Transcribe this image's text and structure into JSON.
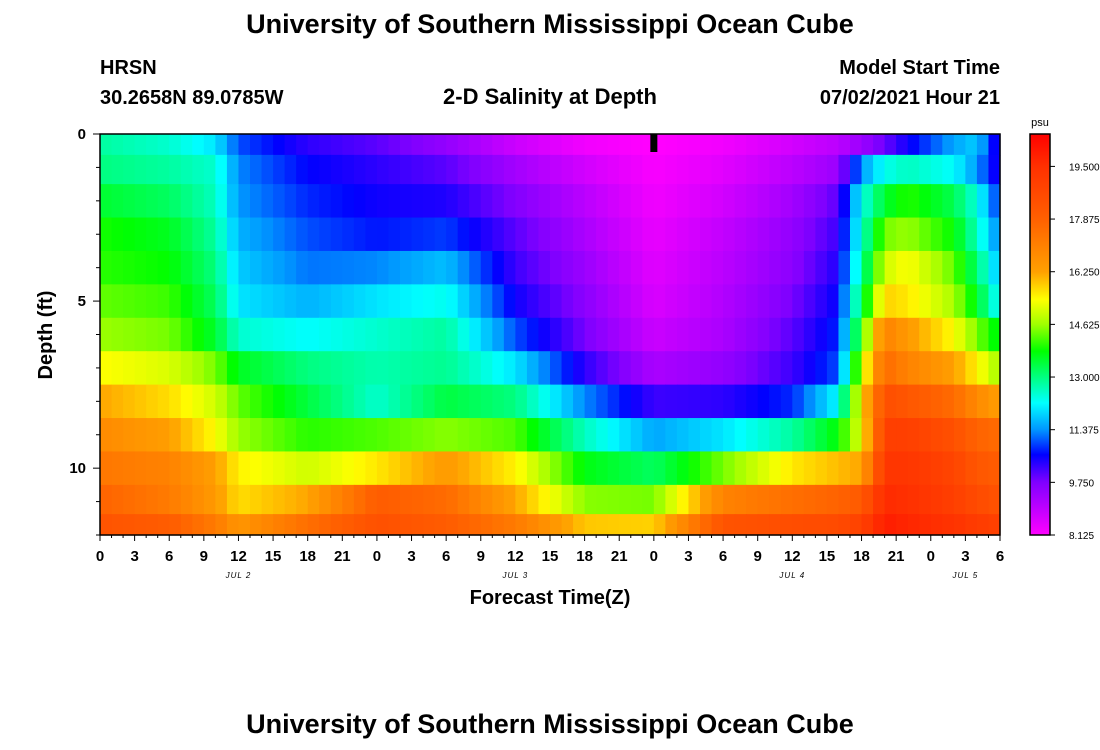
{
  "header": {
    "title": "University of Southern Mississippi Ocean Cube",
    "station": "HRSN",
    "coordinates": "30.2658N  89.0785W",
    "subtitle": "2-D Salinity at Depth",
    "model_start_label": "Model Start Time",
    "model_start_value": "07/02/2021 Hour 21",
    "footer_title": "University of Southern Mississippi Ocean Cube"
  },
  "chart_data": {
    "type": "heatmap",
    "title": "2-D Salinity at Depth",
    "xlabel": "Forecast Time(Z)",
    "ylabel": "Depth (ft)",
    "x_hours": [
      0,
      78
    ],
    "y_depth_ft": [
      0,
      12
    ],
    "y_ticks": [
      "0",
      "5",
      "10"
    ],
    "x_tick_labels": [
      "0",
      "3",
      "6",
      "9",
      "12",
      "15",
      "18",
      "21",
      "0",
      "3",
      "6",
      "9",
      "12",
      "15",
      "18",
      "21",
      "0",
      "3",
      "6",
      "9",
      "12",
      "15",
      "18",
      "21",
      "0",
      "3",
      "6"
    ],
    "day_labels": [
      "JUL 2",
      "JUL 3",
      "JUL 4",
      "JUL 5"
    ],
    "day_label_hours": [
      12,
      36,
      60,
      75
    ],
    "current_time_hour": 48,
    "colorbar": {
      "unit": "psu",
      "min": 8.125,
      "max": 20.5,
      "tick_labels": [
        "8.125",
        "9.750",
        "11.375",
        "13.000",
        "14.625",
        "16.250",
        "17.875",
        "19.500"
      ],
      "stops": [
        {
          "v": 8.125,
          "c": "#ff00ff"
        },
        {
          "v": 9.75,
          "c": "#8000ff"
        },
        {
          "v": 10.6,
          "c": "#0000ff"
        },
        {
          "v": 11.375,
          "c": "#0096ff"
        },
        {
          "v": 12.2,
          "c": "#00ffff"
        },
        {
          "v": 13.0,
          "c": "#00ff80"
        },
        {
          "v": 13.8,
          "c": "#00ff00"
        },
        {
          "v": 14.625,
          "c": "#a0ff00"
        },
        {
          "v": 15.4,
          "c": "#ffff00"
        },
        {
          "v": 16.25,
          "c": "#ffa000"
        },
        {
          "v": 17.875,
          "c": "#ff6000"
        },
        {
          "v": 19.5,
          "c": "#ff3000"
        },
        {
          "v": 20.5,
          "c": "#ff0000"
        }
      ]
    },
    "layer_depths_ft": [
      0.25,
      1.0,
      2.0,
      3.0,
      4.0,
      5.0,
      6.0,
      7.0,
      8.0,
      9.0,
      10.0,
      11.0,
      11.75
    ],
    "profile_hours": [
      0,
      6,
      10,
      12,
      18,
      24,
      30,
      36,
      42,
      48,
      54,
      60,
      64,
      66,
      68,
      70,
      74,
      76,
      78
    ],
    "salinity_grid_psu": [
      [
        12.8,
        12.5,
        12.0,
        11.0,
        10.3,
        10.0,
        9.5,
        8.8,
        8.3,
        8.1,
        8.3,
        8.7,
        9.0,
        9.4,
        9.9,
        10.5,
        11.5,
        11.8,
        10.2
      ],
      [
        13.0,
        12.8,
        12.5,
        11.3,
        10.6,
        10.3,
        10.0,
        9.3,
        8.7,
        8.2,
        8.5,
        9.0,
        9.4,
        11.4,
        12.3,
        12.6,
        12.2,
        11.4,
        10.3
      ],
      [
        13.5,
        13.2,
        12.6,
        11.4,
        10.8,
        10.5,
        10.4,
        9.7,
        9.0,
        8.3,
        8.7,
        9.3,
        10.0,
        12.3,
        13.5,
        14.0,
        13.3,
        12.4,
        10.7
      ],
      [
        13.9,
        13.6,
        12.8,
        11.6,
        11.0,
        10.7,
        10.9,
        10.0,
        9.2,
        8.4,
        8.9,
        9.5,
        10.2,
        12.5,
        14.4,
        14.6,
        13.8,
        12.6,
        11.2
      ],
      [
        14.0,
        13.8,
        13.0,
        11.8,
        11.2,
        11.3,
        11.7,
        10.2,
        9.4,
        8.5,
        9.0,
        9.6,
        10.4,
        12.8,
        15.0,
        15.4,
        14.3,
        13.1,
        11.6
      ],
      [
        14.3,
        14.1,
        13.2,
        12.0,
        11.6,
        12.0,
        12.3,
        10.5,
        9.6,
        8.6,
        9.1,
        9.8,
        10.6,
        13.3,
        15.8,
        15.6,
        14.7,
        13.6,
        12.0
      ],
      [
        14.6,
        14.4,
        13.5,
        12.5,
        12.2,
        12.5,
        12.8,
        11.0,
        9.8,
        8.8,
        9.2,
        10.0,
        10.8,
        14.0,
        17.0,
        16.4,
        15.4,
        14.4,
        13.6
      ],
      [
        15.4,
        15.1,
        14.4,
        13.6,
        13.0,
        12.7,
        12.9,
        12.0,
        10.3,
        9.2,
        9.5,
        10.2,
        11.0,
        15.0,
        17.6,
        17.0,
        16.3,
        15.5,
        14.6
      ],
      [
        16.2,
        15.7,
        15.0,
        14.3,
        13.4,
        12.5,
        13.4,
        13.0,
        11.3,
        10.2,
        10.3,
        10.8,
        12.2,
        15.5,
        18.5,
        18.2,
        17.6,
        16.8,
        16.3
      ],
      [
        16.8,
        16.3,
        15.4,
        14.6,
        14.0,
        14.2,
        14.5,
        14.2,
        12.6,
        11.5,
        12.0,
        12.8,
        13.8,
        15.2,
        19.0,
        19.0,
        18.4,
        17.8,
        17.6
      ],
      [
        17.3,
        17.0,
        16.3,
        15.5,
        15.0,
        15.6,
        16.4,
        15.5,
        13.7,
        13.2,
        14.4,
        15.6,
        16.0,
        16.2,
        19.3,
        19.3,
        18.8,
        18.2,
        18.0
      ],
      [
        17.8,
        17.2,
        16.4,
        15.7,
        16.2,
        18.0,
        17.6,
        16.2,
        14.5,
        14.4,
        17.0,
        17.5,
        17.8,
        18.1,
        19.6,
        19.5,
        19.0,
        18.6,
        18.3
      ],
      [
        18.3,
        18.0,
        17.2,
        16.5,
        17.5,
        18.4,
        18.0,
        17.2,
        15.9,
        15.8,
        18.3,
        18.5,
        18.6,
        18.9,
        19.9,
        19.7,
        19.4,
        19.1,
        18.9
      ]
    ]
  }
}
